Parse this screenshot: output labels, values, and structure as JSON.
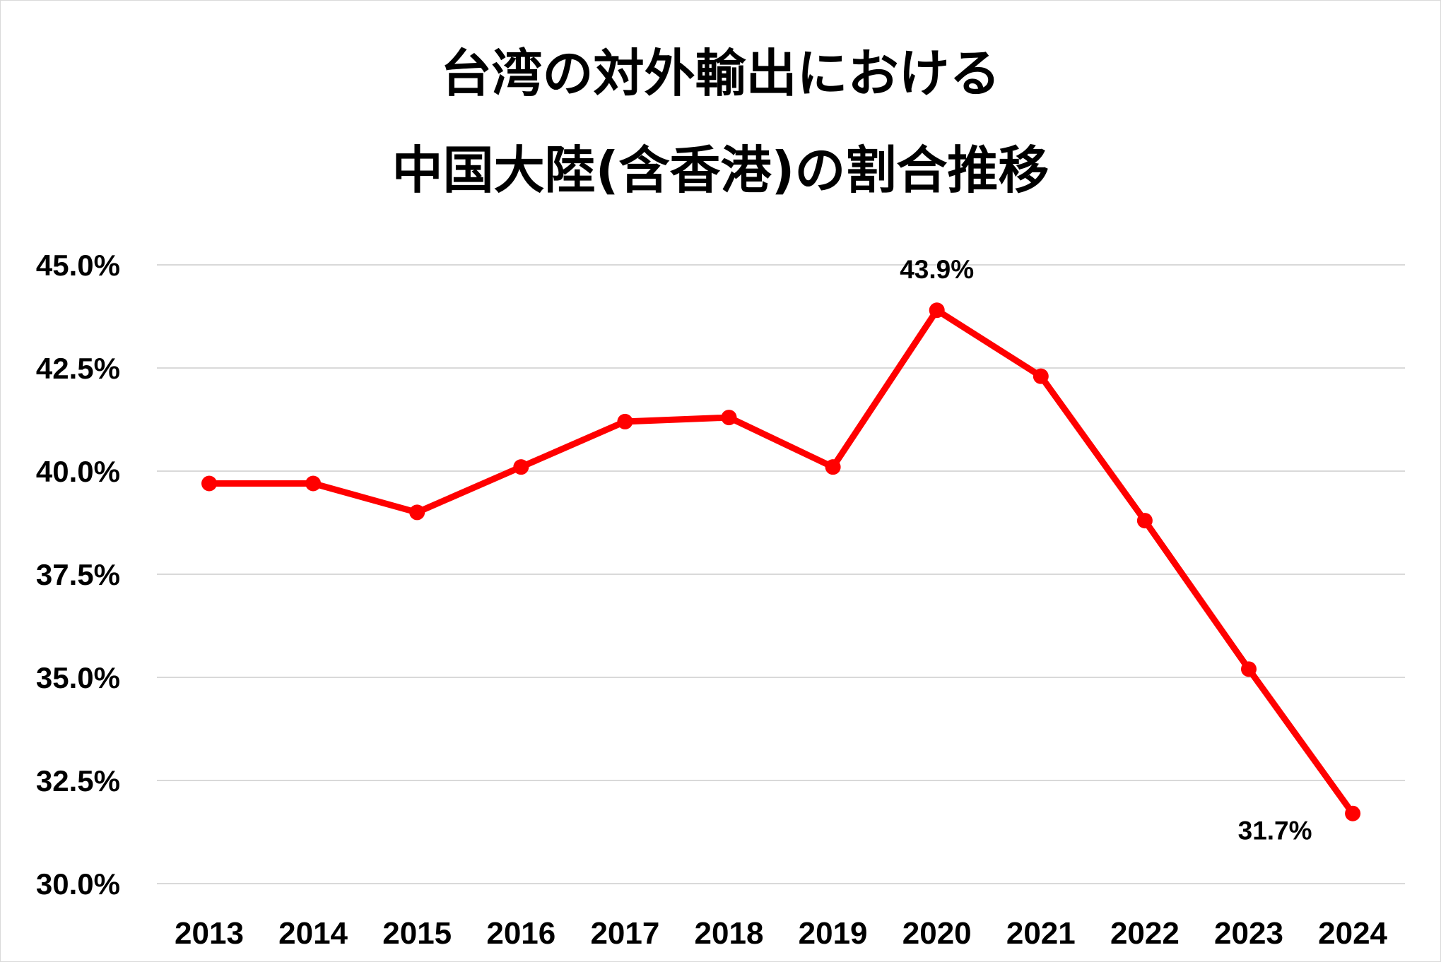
{
  "chart_data": {
    "type": "line",
    "title_lines": [
      "台湾の対外輸出における",
      "中国大陸(含香港)の割合推移"
    ],
    "x": [
      "2013",
      "2014",
      "2015",
      "2016",
      "2017",
      "2018",
      "2019",
      "2020",
      "2021",
      "2022",
      "2023",
      "2024"
    ],
    "series": [
      {
        "values": [
          39.7,
          39.7,
          39.0,
          40.1,
          41.2,
          41.3,
          40.1,
          43.9,
          42.3,
          38.8,
          35.2,
          31.7
        ],
        "color": "#ff0000"
      }
    ],
    "yticks": [
      "30.0%",
      "32.5%",
      "35.0%",
      "37.5%",
      "40.0%",
      "42.5%",
      "45.0%"
    ],
    "ylim": [
      30.0,
      45.0
    ],
    "grid": true,
    "legend": "none",
    "annotations": [
      {
        "x": "2020",
        "text": "43.9%"
      },
      {
        "x": "2024",
        "text": "31.7%"
      }
    ]
  }
}
